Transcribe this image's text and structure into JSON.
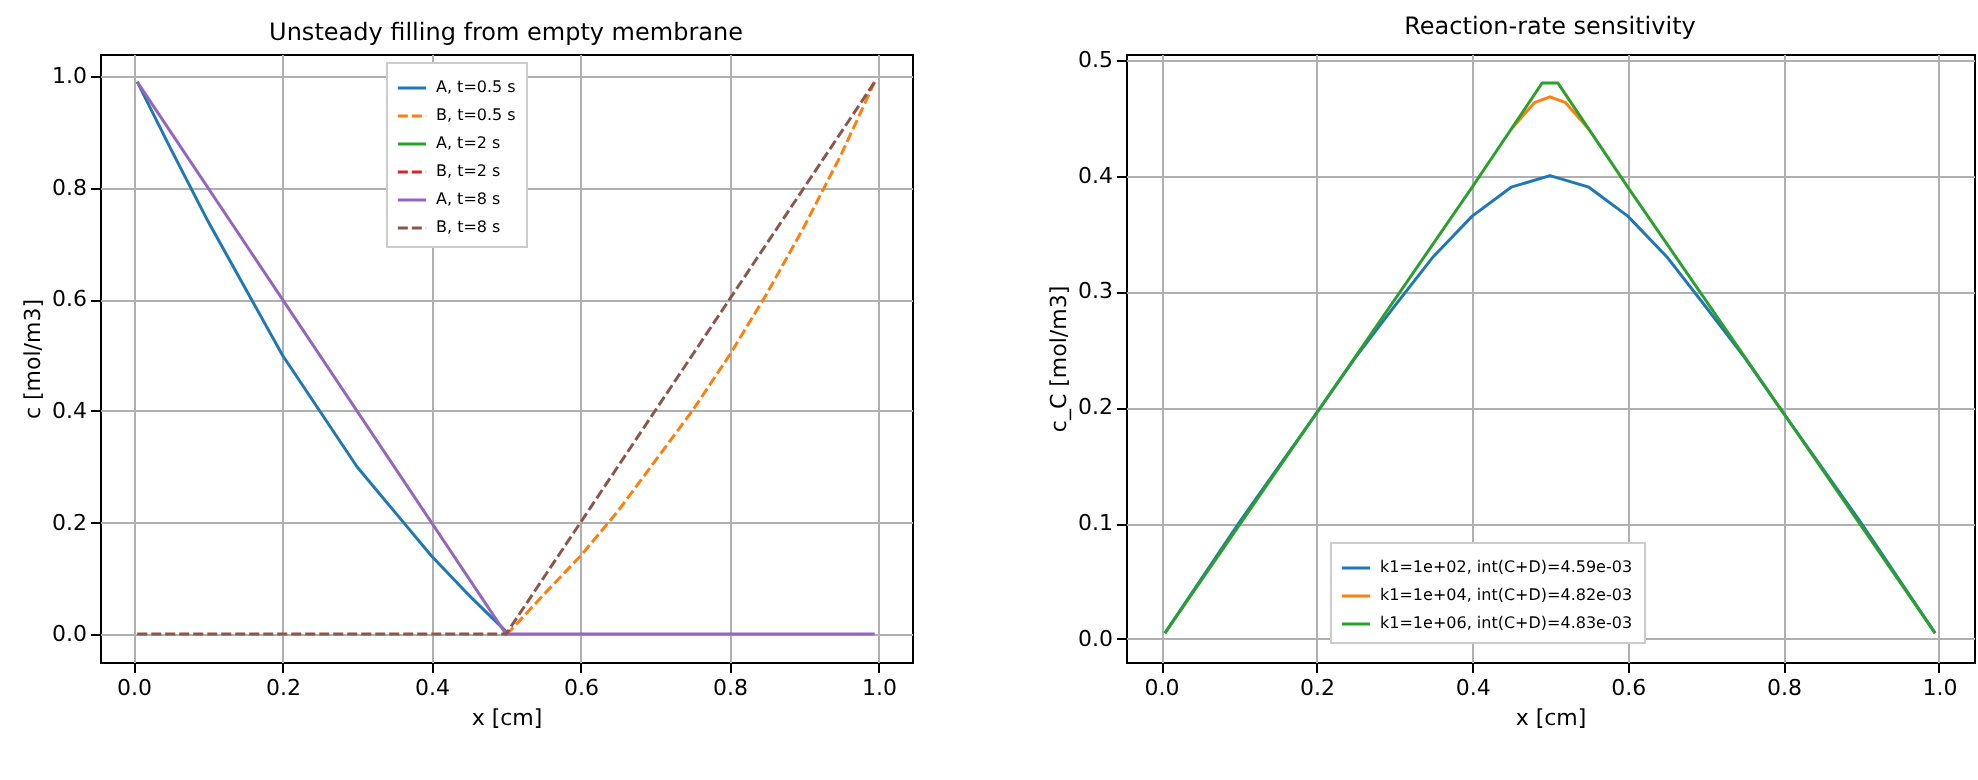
{
  "chart_data": [
    {
      "type": "line",
      "title": "Unsteady filling from empty membrane",
      "xlabel": "x [cm]",
      "ylabel": "c [mol/m3]",
      "xlim": [
        -0.045,
        1.045
      ],
      "ylim": [
        -0.05,
        1.04
      ],
      "xticks": [
        {
          "value": 0,
          "label": "0.0"
        },
        {
          "value": 0.2,
          "label": "0.2"
        },
        {
          "value": 0.4,
          "label": "0.4"
        },
        {
          "value": 0.6,
          "label": "0.6"
        },
        {
          "value": 0.8,
          "label": "0.8"
        },
        {
          "value": 1,
          "label": "1.0"
        }
      ],
      "yticks": [
        {
          "value": 0,
          "label": "0.0"
        },
        {
          "value": 0.2,
          "label": "0.2"
        },
        {
          "value": 0.4,
          "label": "0.4"
        },
        {
          "value": 0.6,
          "label": "0.6"
        },
        {
          "value": 0.8,
          "label": "0.8"
        },
        {
          "value": 1,
          "label": "1.0"
        }
      ],
      "grid": true,
      "legend": "top",
      "marker": "none",
      "series": [
        {
          "name": "A, t=0.5 s",
          "color": "#1f77b4",
          "line_style": "solid",
          "x": [
            0.005,
            0.05,
            0.1,
            0.15,
            0.2,
            0.25,
            0.3,
            0.35,
            0.4,
            0.45,
            0.5
          ],
          "values": [
            0.99,
            0.87,
            0.74,
            0.62,
            0.5,
            0.4,
            0.3,
            0.22,
            0.14,
            0.07,
            0.005
          ]
        },
        {
          "name": "B, t=0.5 s",
          "color": "#ff7f0e",
          "line_style": "dashed",
          "x": [
            0.5,
            0.505,
            0.55,
            0.6,
            0.65,
            0.7,
            0.75,
            0.8,
            0.85,
            0.9,
            0.95,
            0.995
          ],
          "values": [
            0,
            0.005,
            0.07,
            0.14,
            0.22,
            0.31,
            0.4,
            0.5,
            0.61,
            0.73,
            0.86,
            0.99
          ]
        },
        {
          "name": "A, t=2 s",
          "color": "#2ca02c",
          "line_style": "solid"
        },
        {
          "name": "B, t=2 s",
          "color": "#d62728",
          "line_style": "dashed"
        },
        {
          "name": "A, t=8 s",
          "color": "#9467bd",
          "line_style": "solid",
          "x": [
            0.005,
            0.5,
            0.995
          ],
          "values": [
            0.99,
            0,
            0
          ]
        },
        {
          "name": "B, t=8 s",
          "color": "#8c564b",
          "line_style": "dashed",
          "x": [
            0.005,
            0.5,
            0.995
          ],
          "values": [
            0,
            0,
            0.99
          ]
        }
      ]
    },
    {
      "type": "line",
      "title": "Reaction-rate sensitivity",
      "xlabel": "x [cm]",
      "ylabel": "c_C [mol/m3]",
      "xlim": [
        -0.045,
        1.045
      ],
      "ylim": [
        -0.02,
        0.505
      ],
      "xticks": [
        {
          "value": 0,
          "label": "0.0"
        },
        {
          "value": 0.2,
          "label": "0.2"
        },
        {
          "value": 0.4,
          "label": "0.4"
        },
        {
          "value": 0.6,
          "label": "0.6"
        },
        {
          "value": 0.8,
          "label": "0.8"
        },
        {
          "value": 1,
          "label": "1.0"
        }
      ],
      "yticks": [
        {
          "value": 0,
          "label": "0.0"
        },
        {
          "value": 0.1,
          "label": "0.1"
        },
        {
          "value": 0.2,
          "label": "0.2"
        },
        {
          "value": 0.3,
          "label": "0.3"
        },
        {
          "value": 0.4,
          "label": "0.4"
        },
        {
          "value": 0.5,
          "label": "0.5"
        }
      ],
      "grid": true,
      "legend": "bottom",
      "marker": "none",
      "series": [
        {
          "name": "k1=1e+02, int(C+D)=4.59e-03",
          "color": "#1f77b4",
          "line_style": "solid",
          "x": [
            0.005,
            0.1,
            0.2,
            0.25,
            0.3,
            0.35,
            0.4,
            0.45,
            0.5,
            0.55,
            0.6,
            0.65,
            0.7,
            0.75,
            0.8,
            0.9,
            0.995
          ],
          "values": [
            0.005,
            0.1,
            0.195,
            0.243,
            0.287,
            0.33,
            0.365,
            0.39,
            0.4,
            0.39,
            0.365,
            0.33,
            0.287,
            0.243,
            0.195,
            0.1,
            0.005
          ]
        },
        {
          "name": "k1=1e+04, int(C+D)=4.82e-03",
          "color": "#ff7f0e",
          "line_style": "solid",
          "x": [
            0.45,
            0.48,
            0.5,
            0.52,
            0.55
          ],
          "values": [
            0.44,
            0.463,
            0.468,
            0.463,
            0.44
          ]
        },
        {
          "name": "k1=1e+06, int(C+D)=4.83e-03",
          "color": "#2ca02c",
          "line_style": "solid",
          "x": [
            0.005,
            0.2,
            0.4,
            0.49,
            0.51,
            0.6,
            0.8,
            0.995
          ],
          "values": [
            0.005,
            0.195,
            0.39,
            0.48,
            0.48,
            0.39,
            0.195,
            0.005
          ]
        }
      ]
    }
  ]
}
